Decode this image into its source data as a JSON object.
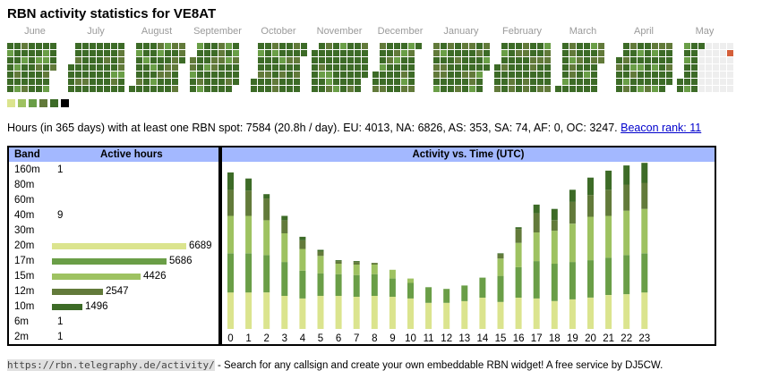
{
  "title": "RBN activity statistics for VE8AT",
  "heatmap": {
    "months": [
      "June",
      "July",
      "August",
      "September",
      "October",
      "November",
      "December",
      "January",
      "February",
      "March",
      "April",
      "May"
    ],
    "level_colors": [
      "#dbe48e",
      "#9ec261",
      "#6a9e47",
      "#627a3a",
      "#3d6b27",
      "#000000"
    ],
    "empty_color": "#eeeeee",
    "today_color": "#d45f3a"
  },
  "summary": {
    "text": "Hours (in 365 days) with at least one RBN spot: 7584 (20.8h / day). EU: 4013, NA: 6826, AS: 353, SA: 74, AF: 0, OC: 3247.",
    "link_label": "Beacon rank: 11"
  },
  "band_table": {
    "header_band": "Band",
    "header_hours": "Active hours",
    "rows": [
      {
        "band": "160m",
        "hours": "1",
        "value": 1,
        "color": "#dbe48e"
      },
      {
        "band": "80m",
        "hours": "",
        "value": 0,
        "color": "#dbe48e"
      },
      {
        "band": "60m",
        "hours": "",
        "value": 0,
        "color": "#dbe48e"
      },
      {
        "band": "40m",
        "hours": "9",
        "value": 9,
        "color": "#dbe48e"
      },
      {
        "band": "30m",
        "hours": "",
        "value": 0,
        "color": "#dbe48e"
      },
      {
        "band": "20m",
        "hours": "6689",
        "value": 6689,
        "color": "#dbe48e"
      },
      {
        "band": "17m",
        "hours": "5686",
        "value": 5686,
        "color": "#6a9e47"
      },
      {
        "band": "15m",
        "hours": "4426",
        "value": 4426,
        "color": "#9ec261"
      },
      {
        "band": "12m",
        "hours": "2547",
        "value": 2547,
        "color": "#627a3a"
      },
      {
        "band": "10m",
        "hours": "1496",
        "value": 1496,
        "color": "#3d6b27"
      },
      {
        "band": "6m",
        "hours": "1",
        "value": 1,
        "color": "#dbe48e"
      },
      {
        "band": "2m",
        "hours": "1",
        "value": 1,
        "color": "#dbe48e"
      }
    ]
  },
  "chart_data": {
    "type": "bar",
    "title": "Activity vs. Time (UTC)",
    "categories": [
      "0",
      "1",
      "2",
      "3",
      "4",
      "5",
      "6",
      "7",
      "8",
      "9",
      "10",
      "11",
      "12",
      "13",
      "14",
      "15",
      "16",
      "17",
      "18",
      "19",
      "20",
      "21",
      "22",
      "23"
    ],
    "series": [
      {
        "color": "#dbe48e",
        "values": [
          42,
          42,
          42,
          38,
          35,
          38,
          38,
          37,
          38,
          37,
          35,
          30,
          30,
          32,
          36,
          31,
          36,
          35,
          32,
          34,
          36,
          39,
          40,
          42
        ]
      },
      {
        "color": "#6a9e47",
        "values": [
          45,
          45,
          43,
          39,
          32,
          26,
          25,
          25,
          25,
          21,
          18,
          18,
          16,
          18,
          23,
          30,
          35,
          43,
          43,
          43,
          43,
          43,
          45,
          45
        ]
      },
      {
        "color": "#9ec261",
        "values": [
          43,
          43,
          40,
          33,
          25,
          20,
          12,
          12,
          11,
          10,
          5,
          0,
          0,
          0,
          0,
          20,
          28,
          33,
          38,
          44,
          50,
          48,
          51,
          51
        ]
      },
      {
        "color": "#627a3a",
        "values": [
          30,
          29,
          25,
          15,
          10,
          5,
          3,
          3,
          2,
          0,
          0,
          0,
          0,
          0,
          0,
          5,
          16,
          22,
          12,
          25,
          25,
          30,
          30,
          30
        ]
      },
      {
        "color": "#3d6b27",
        "values": [
          20,
          14,
          5,
          5,
          4,
          2,
          1,
          1,
          0,
          0,
          0,
          0,
          0,
          0,
          0,
          1,
          2,
          10,
          13,
          14,
          20,
          22,
          22,
          23
        ]
      }
    ],
    "ylim": [
      0,
      185
    ]
  },
  "footer": {
    "url": "https://rbn.telegraphy.de/activity/",
    "text": " - Search for any callsign and create your own embeddable RBN widget! A free service by DJ5CW."
  }
}
